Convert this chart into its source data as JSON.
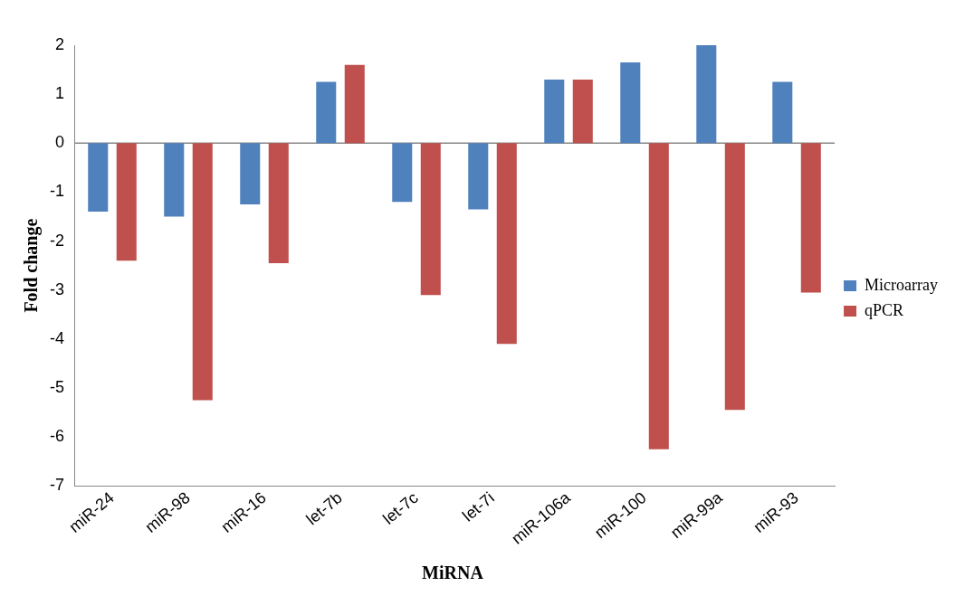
{
  "chart_data": {
    "type": "bar",
    "xlabel": "MiRNA",
    "ylabel": "Fold change",
    "categories": [
      "miR-24",
      "miR-98",
      "miR-16",
      "let-7b",
      "let-7c",
      "let-7i",
      "miR-106a",
      "miR-100",
      "miR-99a",
      "miR-93"
    ],
    "series": [
      {
        "name": "Microarray",
        "color": "#4f81bd",
        "values": [
          -1.4,
          -1.5,
          -1.25,
          1.25,
          -1.2,
          -1.35,
          1.3,
          1.65,
          2.0,
          1.25
        ]
      },
      {
        "name": "qPCR",
        "color": "#c0504d",
        "values": [
          -2.4,
          -5.25,
          -2.45,
          1.6,
          -3.1,
          -4.1,
          1.3,
          -6.25,
          -5.45,
          -3.05
        ]
      }
    ],
    "ylim": [
      -7,
      2
    ],
    "yticks": [
      -7,
      -6,
      -5,
      -4,
      -3,
      -2,
      -1,
      0,
      1,
      2
    ],
    "grid": false,
    "ref_lines": [
      {
        "axis": "y",
        "value": 0,
        "color": "#888888"
      }
    ],
    "legend": "right"
  }
}
